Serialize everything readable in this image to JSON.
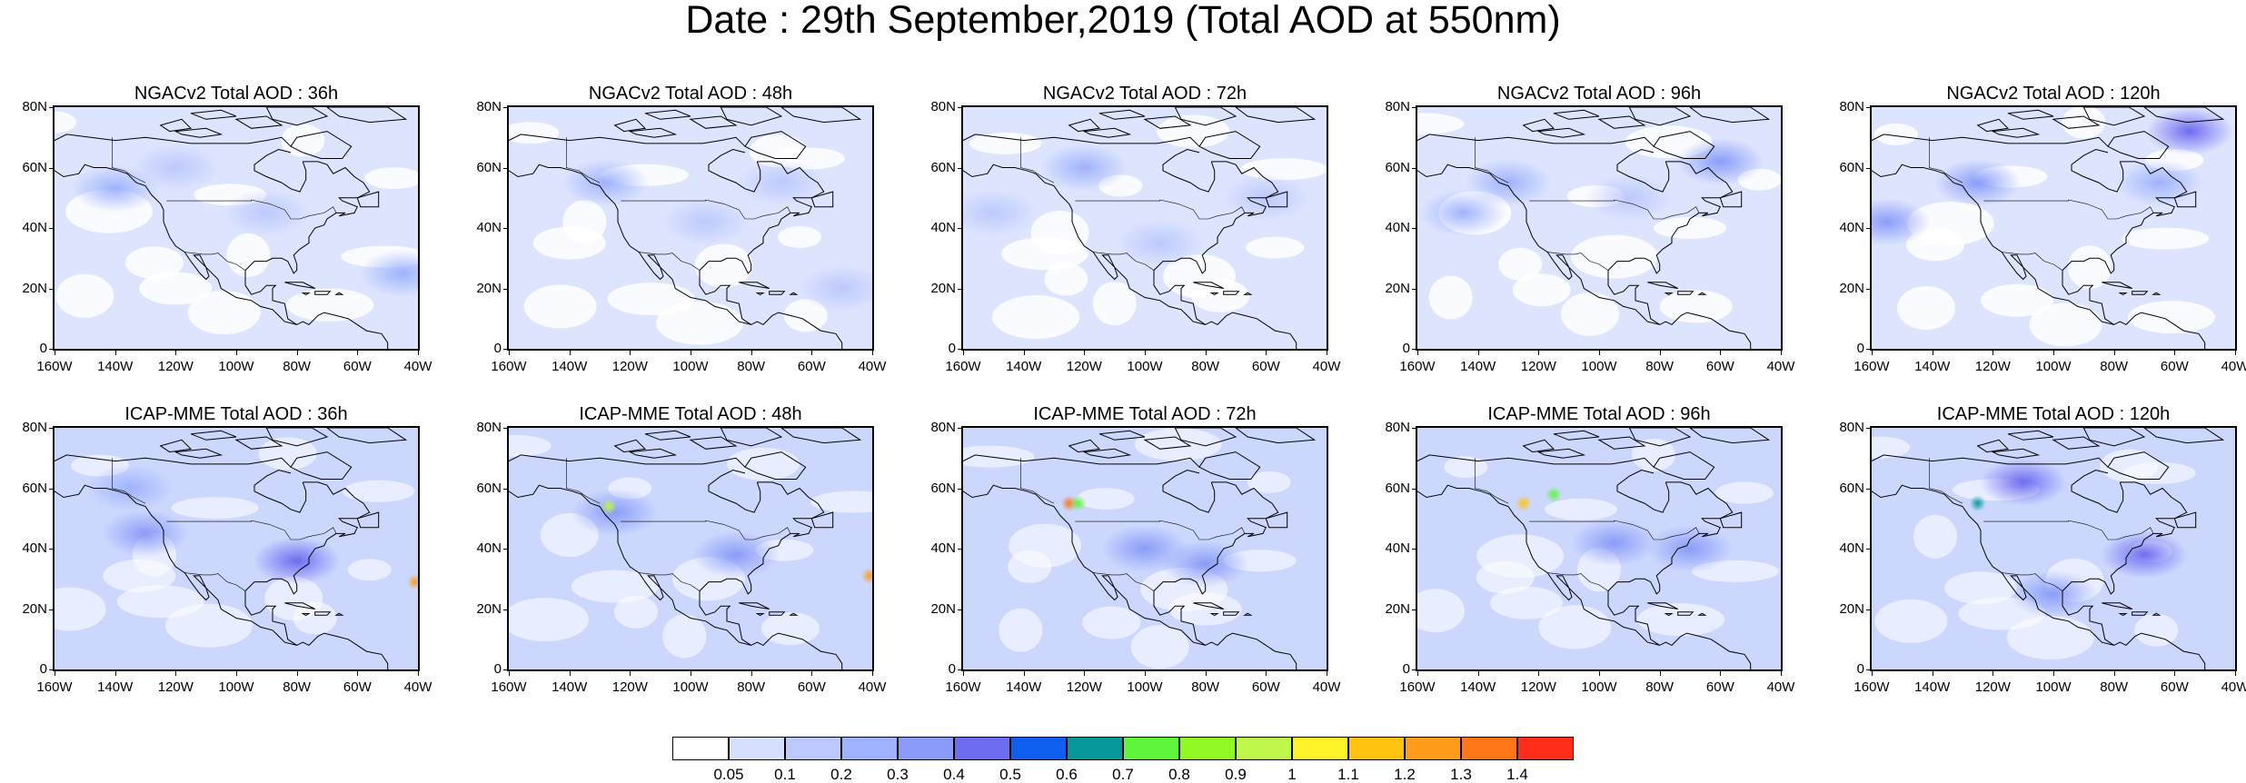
{
  "title": "Date : 29th September,2019 (Total AOD at 550nm)",
  "lat_ticks": [
    "80N",
    "60N",
    "40N",
    "20N",
    "0"
  ],
  "lon_ticks": [
    "160W",
    "140W",
    "120W",
    "100W",
    "80W",
    "60W",
    "40W"
  ],
  "panels": [
    {
      "title": "NGACv2 Total AOD : 36h",
      "model": "NGACv2",
      "lead_hours": 36,
      "aerosol_features": [
        {
          "lon": -140,
          "lat": 53,
          "aod": 0.25
        },
        {
          "lon": -45,
          "lat": 25,
          "aod": 0.2
        },
        {
          "lon": -90,
          "lat": 45,
          "aod": 0.15
        },
        {
          "lon": -120,
          "lat": 60,
          "aod": 0.12
        }
      ]
    },
    {
      "title": "NGACv2 Total AOD : 48h",
      "model": "NGACv2",
      "lead_hours": 48,
      "aerosol_features": [
        {
          "lon": -128,
          "lat": 55,
          "aod": 0.25
        },
        {
          "lon": -95,
          "lat": 42,
          "aod": 0.18
        },
        {
          "lon": -50,
          "lat": 20,
          "aod": 0.15
        },
        {
          "lon": -70,
          "lat": 55,
          "aod": 0.12
        }
      ]
    },
    {
      "title": "NGACv2 Total AOD : 72h",
      "model": "NGACv2",
      "lead_hours": 72,
      "aerosol_features": [
        {
          "lon": -120,
          "lat": 60,
          "aod": 0.22
        },
        {
          "lon": -150,
          "lat": 45,
          "aod": 0.15
        },
        {
          "lon": -60,
          "lat": 50,
          "aod": 0.15
        },
        {
          "lon": -95,
          "lat": 35,
          "aod": 0.12
        }
      ]
    },
    {
      "title": "NGACv2 Total AOD : 96h",
      "model": "NGACv2",
      "lead_hours": 96,
      "aerosol_features": [
        {
          "lon": -60,
          "lat": 62,
          "aod": 0.35
        },
        {
          "lon": -130,
          "lat": 55,
          "aod": 0.25
        },
        {
          "lon": -145,
          "lat": 45,
          "aod": 0.2
        },
        {
          "lon": -90,
          "lat": 50,
          "aod": 0.15
        }
      ]
    },
    {
      "title": "NGACv2 Total AOD : 120h",
      "model": "NGACv2",
      "lead_hours": 120,
      "aerosol_features": [
        {
          "lon": -55,
          "lat": 72,
          "aod": 0.4
        },
        {
          "lon": -125,
          "lat": 55,
          "aod": 0.3
        },
        {
          "lon": -155,
          "lat": 42,
          "aod": 0.3
        },
        {
          "lon": -65,
          "lat": 55,
          "aod": 0.25
        }
      ]
    },
    {
      "title": "ICAP-MME Total AOD : 36h",
      "model": "ICAP-MME",
      "lead_hours": 36,
      "aerosol_features": [
        {
          "lon": -80,
          "lat": 36,
          "aod": 0.4
        },
        {
          "lon": -130,
          "lat": 45,
          "aod": 0.3
        },
        {
          "lon": -41,
          "lat": 29,
          "aod": 1.2
        },
        {
          "lon": -135,
          "lat": 60,
          "aod": 0.2
        }
      ]
    },
    {
      "title": "ICAP-MME Total AOD : 48h",
      "model": "ICAP-MME",
      "lead_hours": 48,
      "aerosol_features": [
        {
          "lon": -85,
          "lat": 38,
          "aod": 0.35
        },
        {
          "lon": -125,
          "lat": 52,
          "aod": 0.3
        },
        {
          "lon": -41,
          "lat": 31,
          "aod": 1.2
        },
        {
          "lon": -127,
          "lat": 54,
          "aod": 0.9
        }
      ]
    },
    {
      "title": "ICAP-MME Total AOD : 72h",
      "model": "ICAP-MME",
      "lead_hours": 72,
      "aerosol_features": [
        {
          "lon": -100,
          "lat": 40,
          "aod": 0.35
        },
        {
          "lon": -80,
          "lat": 35,
          "aod": 0.3
        },
        {
          "lon": -125,
          "lat": 55,
          "aod": 1.3
        },
        {
          "lon": -122,
          "lat": 55,
          "aod": 0.7
        }
      ]
    },
    {
      "title": "ICAP-MME Total AOD : 96h",
      "model": "ICAP-MME",
      "lead_hours": 96,
      "aerosol_features": [
        {
          "lon": -115,
          "lat": 58,
          "aod": 0.7
        },
        {
          "lon": -95,
          "lat": 42,
          "aod": 0.35
        },
        {
          "lon": -70,
          "lat": 40,
          "aod": 0.3
        },
        {
          "lon": -125,
          "lat": 55,
          "aod": 1.1
        }
      ]
    },
    {
      "title": "ICAP-MME Total AOD : 120h",
      "model": "ICAP-MME",
      "lead_hours": 120,
      "aerosol_features": [
        {
          "lon": -110,
          "lat": 62,
          "aod": 0.45
        },
        {
          "lon": -70,
          "lat": 38,
          "aod": 0.4
        },
        {
          "lon": -100,
          "lat": 25,
          "aod": 0.35
        },
        {
          "lon": -125,
          "lat": 55,
          "aod": 0.6
        }
      ]
    }
  ],
  "colorbar": {
    "colors": [
      "#ffffff",
      "#d6dffe",
      "#bcc9fd",
      "#9fb3fc",
      "#8a9cf8",
      "#6e6cf0",
      "#0f5ff1",
      "#07999a",
      "#5ef53a",
      "#93f925",
      "#bef649",
      "#fff52a",
      "#ffc30f",
      "#ff9c1a",
      "#ff7518",
      "#ff2d19"
    ],
    "labels": [
      "0.05",
      "0.1",
      "0.2",
      "0.3",
      "0.4",
      "0.5",
      "0.6",
      "0.7",
      "0.8",
      "0.9",
      "1",
      "1.1",
      "1.2",
      "1.3",
      "1.4"
    ]
  }
}
